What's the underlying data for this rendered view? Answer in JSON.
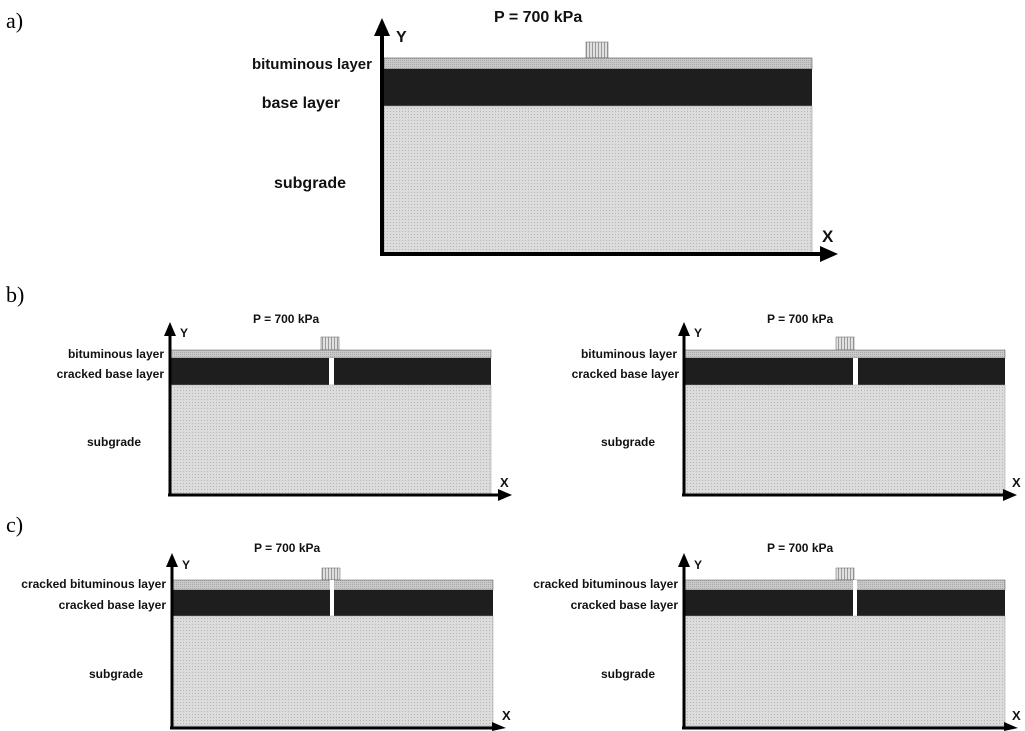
{
  "panels": [
    {
      "id": "a",
      "label": "a)",
      "load": "P = 700 kPa",
      "y_axis": "Y",
      "x_axis": "X",
      "layers": [
        "bituminous layer",
        "base layer",
        "subgrade"
      ]
    },
    {
      "id": "b",
      "label": "b)",
      "subfigures": [
        {
          "load": "P = 700 kPa",
          "y_axis": "Y",
          "x_axis": "X",
          "layers": [
            "bituminous layer",
            "cracked base layer",
            "subgrade"
          ]
        },
        {
          "load": "P = 700 kPa",
          "y_axis": "Y",
          "x_axis": "X",
          "layers": [
            "bituminous layer",
            "cracked base layer",
            "subgrade"
          ]
        }
      ]
    },
    {
      "id": "c",
      "label": "c)",
      "subfigures": [
        {
          "load": "P = 700 kPa",
          "y_axis": "Y",
          "x_axis": "X",
          "layers": [
            "cracked bituminous layer",
            "cracked base layer",
            "subgrade"
          ]
        },
        {
          "load": "P = 700 kPa",
          "y_axis": "Y",
          "x_axis": "X",
          "layers": [
            "cracked bituminous layer",
            "cracked base layer",
            "subgrade"
          ]
        }
      ]
    }
  ],
  "colors": {
    "bituminous": "#c8c8c8",
    "base": "#1e1e1e",
    "subgrade": "#d9d9d9",
    "crack": "#ffffff",
    "load_pad": "#e2e2e2"
  }
}
